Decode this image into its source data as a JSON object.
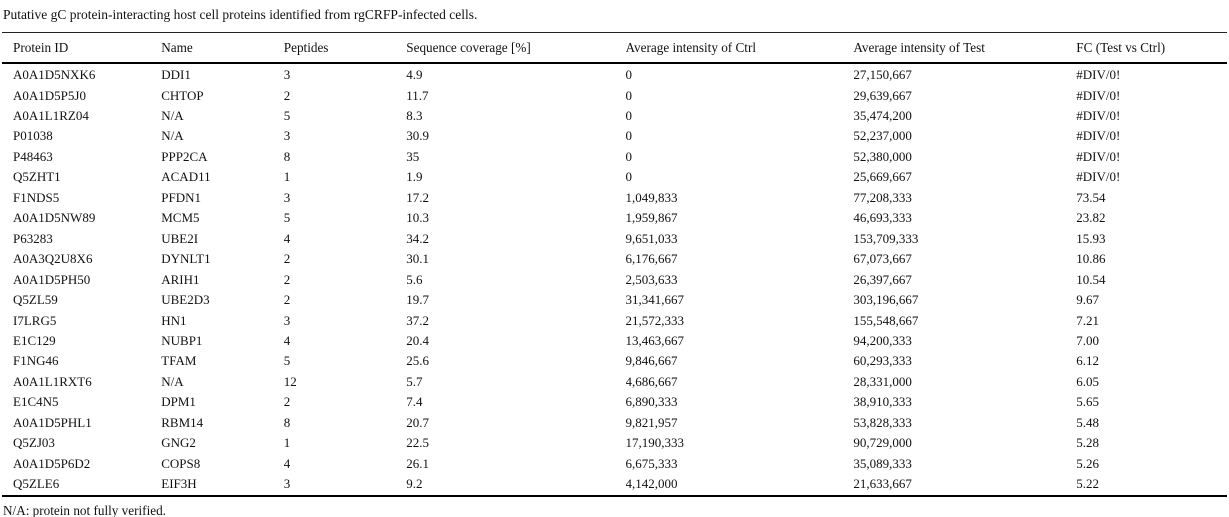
{
  "table": {
    "title": "Putative gC protein-interacting host cell proteins identified from rgCRFP-infected cells.",
    "columns": [
      "Protein ID",
      "Name",
      "Peptides",
      "Sequence coverage [%]",
      "Average intensity of Ctrl",
      "Average intensity of Test",
      "FC (Test vs Ctrl)"
    ],
    "rows": [
      [
        "A0A1D5NXK6",
        "DDI1",
        "3",
        "4.9",
        "0",
        "27,150,667",
        "#DIV/0!"
      ],
      [
        "A0A1D5P5J0",
        "CHTOP",
        "2",
        "11.7",
        "0",
        "29,639,667",
        "#DIV/0!"
      ],
      [
        "A0A1L1RZ04",
        "N/A",
        "5",
        "8.3",
        "0",
        "35,474,200",
        "#DIV/0!"
      ],
      [
        "P01038",
        "N/A",
        "3",
        "30.9",
        "0",
        "52,237,000",
        "#DIV/0!"
      ],
      [
        "P48463",
        "PPP2CA",
        "8",
        "35",
        "0",
        "52,380,000",
        "#DIV/0!"
      ],
      [
        "Q5ZHT1",
        "ACAD11",
        "1",
        "1.9",
        "0",
        "25,669,667",
        "#DIV/0!"
      ],
      [
        "F1NDS5",
        "PFDN1",
        "3",
        "17.2",
        "1,049,833",
        "77,208,333",
        "73.54"
      ],
      [
        "A0A1D5NW89",
        "MCM5",
        "5",
        "10.3",
        "1,959,867",
        "46,693,333",
        "23.82"
      ],
      [
        "P63283",
        "UBE2I",
        "4",
        "34.2",
        "9,651,033",
        "153,709,333",
        "15.93"
      ],
      [
        "A0A3Q2U8X6",
        "DYNLT1",
        "2",
        "30.1",
        "6,176,667",
        "67,073,667",
        "10.86"
      ],
      [
        "A0A1D5PH50",
        "ARIH1",
        "2",
        "5.6",
        "2,503,633",
        "26,397,667",
        "10.54"
      ],
      [
        "Q5ZL59",
        "UBE2D3",
        "2",
        "19.7",
        "31,341,667",
        "303,196,667",
        "9.67"
      ],
      [
        "I7LRG5",
        "HN1",
        "3",
        "37.2",
        "21,572,333",
        "155,548,667",
        "7.21"
      ],
      [
        "E1C129",
        "NUBP1",
        "4",
        "20.4",
        "13,463,667",
        "94,200,333",
        "7.00"
      ],
      [
        "F1NG46",
        "TFAM",
        "5",
        "25.6",
        "9,846,667",
        "60,293,333",
        "6.12"
      ],
      [
        "A0A1L1RXT6",
        "N/A",
        "12",
        "5.7",
        "4,686,667",
        "28,331,000",
        "6.05"
      ],
      [
        "E1C4N5",
        "DPM1",
        "2",
        "7.4",
        "6,890,333",
        "38,910,333",
        "5.65"
      ],
      [
        "A0A1D5PHL1",
        "RBM14",
        "8",
        "20.7",
        "9,821,957",
        "53,828,333",
        "5.48"
      ],
      [
        "Q5ZJ03",
        "GNG2",
        "1",
        "22.5",
        "17,190,333",
        "90,729,000",
        "5.28"
      ],
      [
        "A0A1D5P6D2",
        "COPS8",
        "4",
        "26.1",
        "6,675,333",
        "35,089,333",
        "5.26"
      ],
      [
        "Q5ZLE6",
        "EIF3H",
        "3",
        "9.2",
        "4,142,000",
        "21,633,667",
        "5.22"
      ]
    ],
    "footnote": "N/A: protein not fully verified."
  },
  "colors": {
    "text": "#111111",
    "rule": "#000000",
    "background": "#ffffff"
  }
}
